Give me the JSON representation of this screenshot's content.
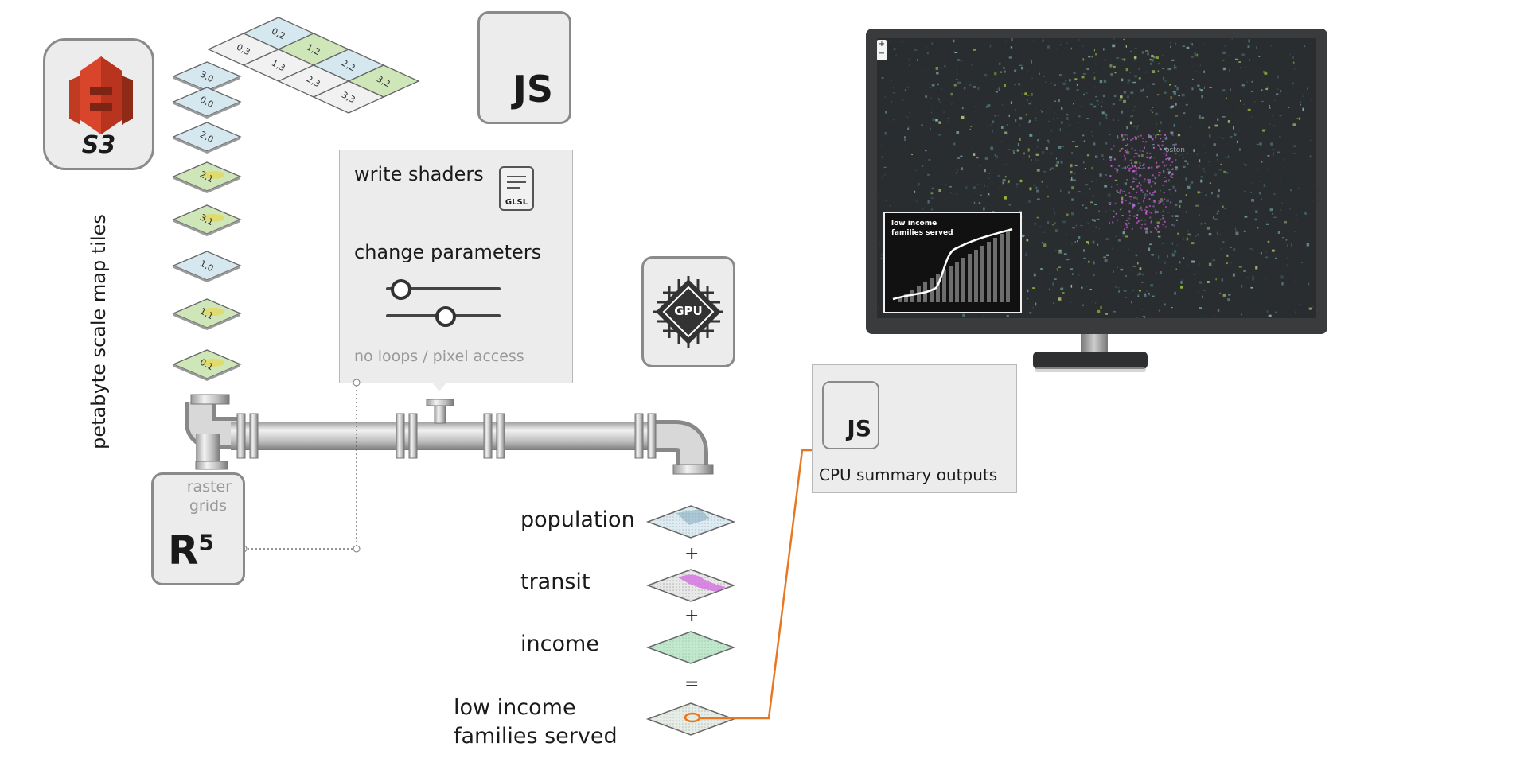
{
  "s3": {
    "label": "S3"
  },
  "tiles": {
    "stack_label": "petabyte scale map tiles",
    "stack": [
      "3,0",
      "0,0",
      "2,0",
      "2,1",
      "3,1",
      "1,0",
      "1,1",
      "0,1"
    ],
    "grid": [
      "0,2",
      "1,2",
      "0,3",
      "1,3",
      "2,2",
      "2,3",
      "3,2",
      "3,3"
    ]
  },
  "js_top": {
    "label": "JS"
  },
  "shader_panel": {
    "write_shaders": "write shaders",
    "glsl_label": "GLSL",
    "change_parameters": "change parameters",
    "constraint": "no loops / pixel access"
  },
  "gpu": {
    "label": "GPU"
  },
  "r5": {
    "caption_line1": "raster",
    "caption_line2": "grids",
    "label": "R",
    "superscript": "5"
  },
  "layers": [
    {
      "label": "population",
      "op": "+"
    },
    {
      "label": "transit",
      "op": "+"
    },
    {
      "label": "income",
      "op": "="
    },
    {
      "label_line1": "low income",
      "label_line2": "families served"
    }
  ],
  "cpu_panel": {
    "js_label": "JS",
    "label": "CPU summary outputs"
  },
  "monitor": {
    "zoom_in": "+",
    "zoom_out": "−",
    "map_place_label": "oston",
    "chart": {
      "title_line1": "low income",
      "title_line2": "families served"
    }
  },
  "colors": {
    "accent_orange": "#e87722",
    "s3_red": "#d9452b",
    "panel_gray": "#ececec",
    "screen_dark": "#2a2d2f"
  }
}
